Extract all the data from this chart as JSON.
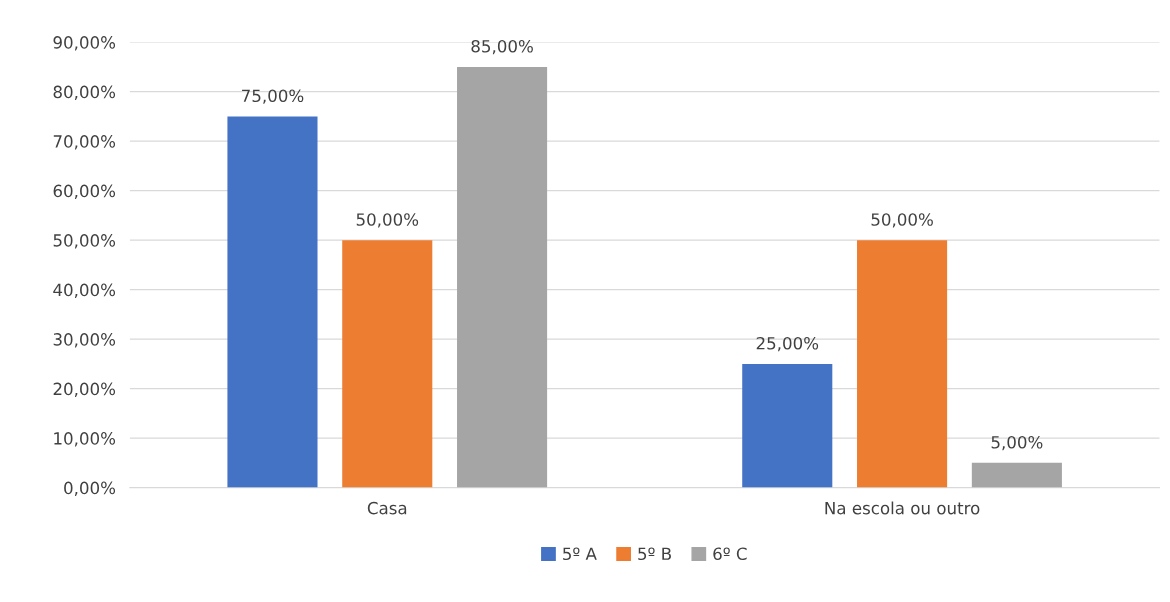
{
  "chart_data": {
    "type": "bar",
    "categories": [
      "Casa",
      "Na escola ou outro"
    ],
    "series": [
      {
        "name": "5º A",
        "color": "#4472c4",
        "values": [
          75,
          25
        ],
        "value_labels": [
          "75,00%",
          "25,00%"
        ]
      },
      {
        "name": "5º B",
        "color": "#ed7d31",
        "values": [
          50,
          50
        ],
        "value_labels": [
          "50,00%",
          "50,00%"
        ]
      },
      {
        "name": "6º C",
        "color": "#a5a5a5",
        "values": [
          85,
          5
        ],
        "value_labels": [
          "85,00%",
          "5,00%"
        ]
      }
    ],
    "ylim": [
      0,
      90
    ],
    "yticks": [
      {
        "value": 0,
        "label": "0,00%"
      },
      {
        "value": 10,
        "label": "10,00%"
      },
      {
        "value": 20,
        "label": "20,00%"
      },
      {
        "value": 30,
        "label": "30,00%"
      },
      {
        "value": 40,
        "label": "40,00%"
      },
      {
        "value": 50,
        "label": "50,00%"
      },
      {
        "value": 60,
        "label": "60,00%"
      },
      {
        "value": 70,
        "label": "70,00%"
      },
      {
        "value": 80,
        "label": "80,00%"
      },
      {
        "value": 90,
        "label": "90,00%"
      }
    ],
    "grid": "y",
    "legend": "bottom"
  }
}
